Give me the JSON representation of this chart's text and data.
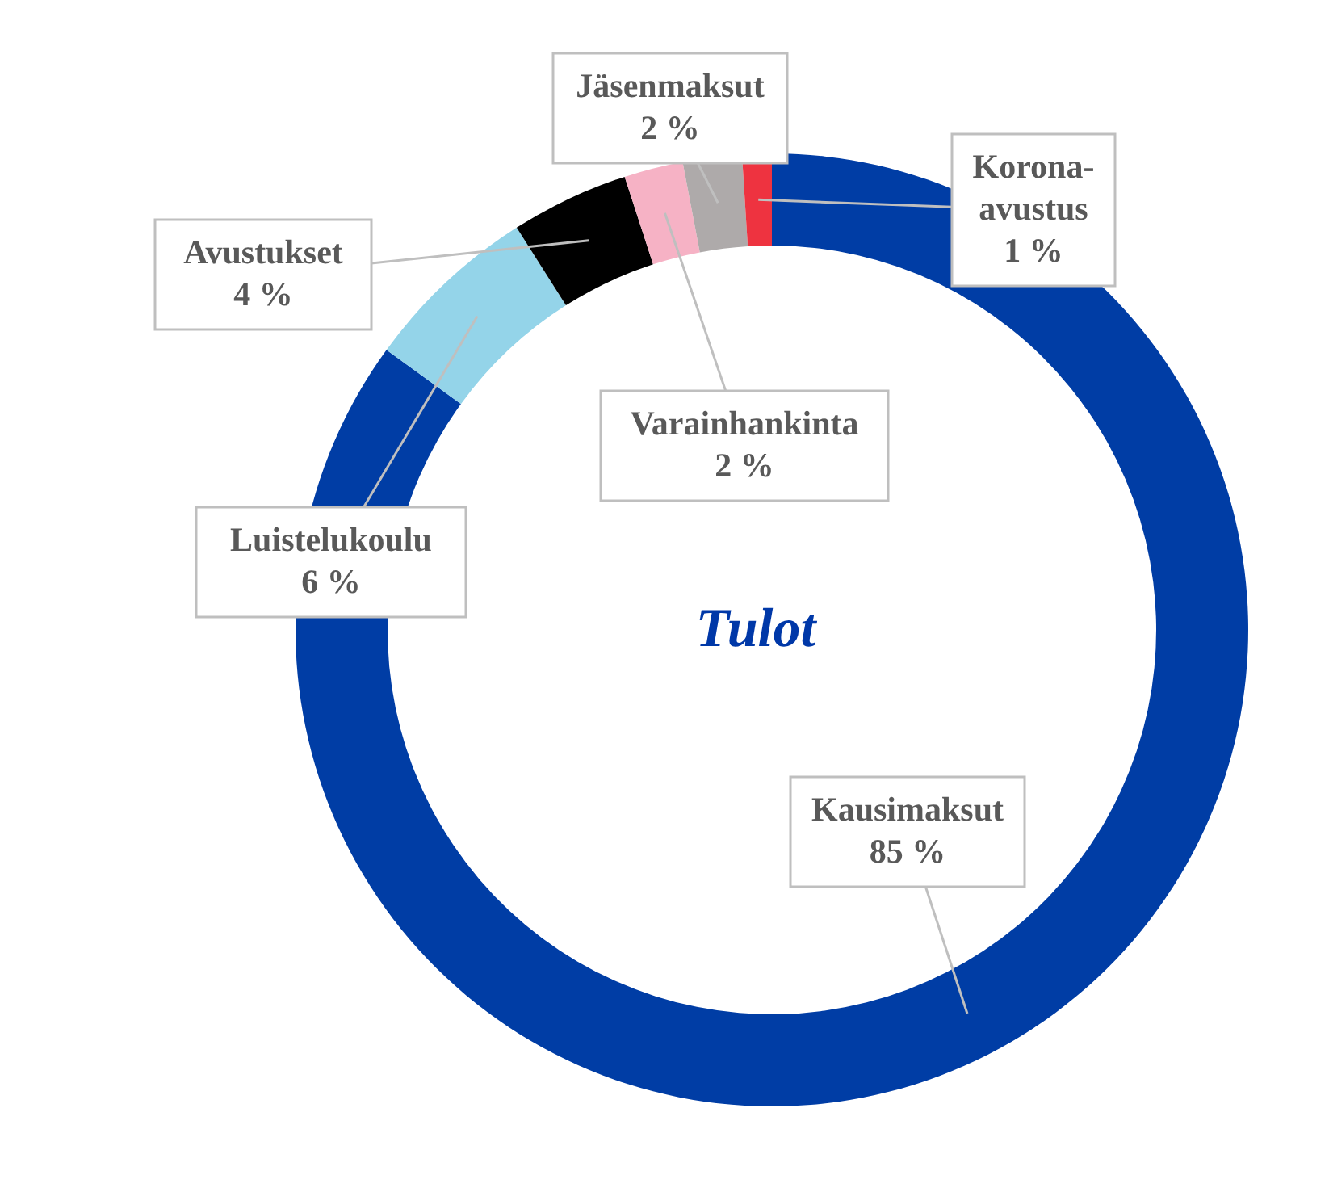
{
  "chart_data": {
    "type": "donut",
    "title": "Tulot",
    "categories": [
      "Kausimaksut",
      "Luistelukoulu",
      "Avustukset",
      "Varainhankinta",
      "Jäsenmaksut",
      "Korona-avustus"
    ],
    "values": [
      85,
      6,
      4,
      2,
      2,
      1
    ],
    "colors": [
      "#003da5",
      "#94d4e9",
      "#000000",
      "#f6b2c5",
      "#aeaaaa",
      "#ee3340"
    ],
    "value_labels": [
      "85 %",
      "6 %",
      "4 %",
      "2 %",
      "2 %",
      "1 %"
    ],
    "legend": false
  }
}
